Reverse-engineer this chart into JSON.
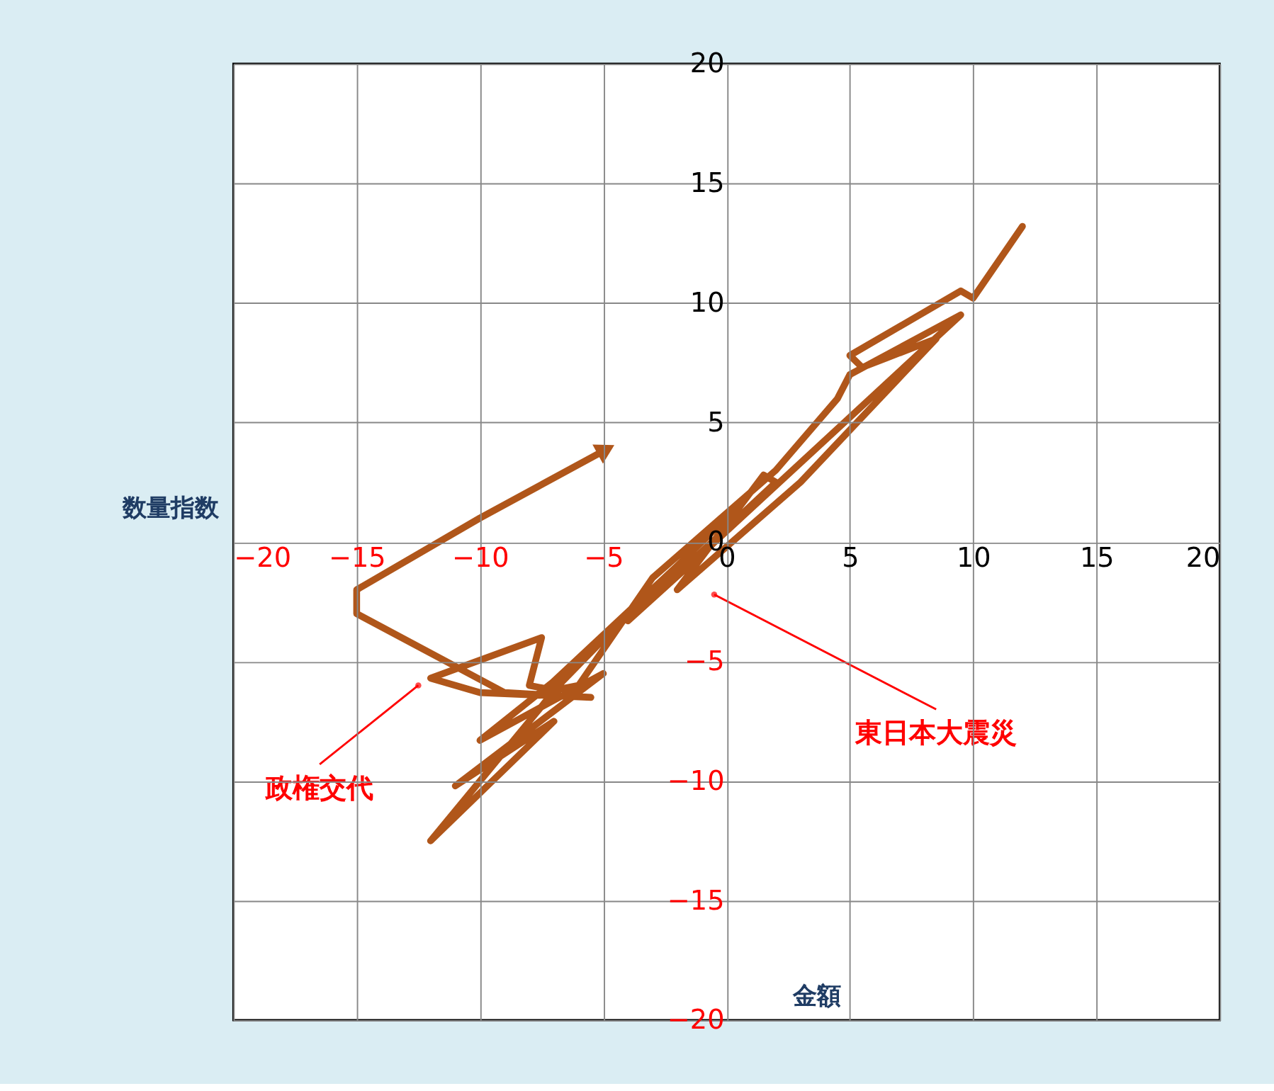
{
  "chart_data": {
    "type": "line",
    "xlabel": "金額",
    "ylabel": "数量指数",
    "x": [
      12,
      10,
      9.5,
      5,
      5.5,
      8.5,
      3,
      -2,
      1.5,
      2,
      -4,
      -1,
      9.5,
      5,
      4.5,
      2,
      -3,
      -6,
      -7.5,
      -2,
      0,
      -6,
      -10,
      -5,
      -11,
      -7,
      -12,
      -6,
      -3.5,
      -7,
      -8,
      -7.5,
      -12,
      -10,
      -5.5,
      -9,
      -15,
      -15,
      -10,
      -5
    ],
    "series": [
      {
        "color": "#b0561a",
        "values": [
          13.2,
          10.2,
          10.5,
          7.8,
          7.3,
          8.5,
          2.5,
          -2,
          2.8,
          2.5,
          -3.3,
          -0.5,
          9.5,
          7,
          6,
          3,
          -1.5,
          -6,
          -6.3,
          -1,
          1,
          -5,
          -8.3,
          -5.5,
          -10.2,
          -7.5,
          -12.5,
          -5,
          -2.5,
          -6.2,
          -6,
          -4,
          -5.7,
          -6.3,
          -6.5,
          -6.3,
          -3,
          -2,
          1,
          3.8
        ]
      }
    ],
    "xlim": [
      -20,
      20
    ],
    "ylim": [
      -20,
      20
    ],
    "xticks": [
      -20,
      -15,
      -10,
      -5,
      0,
      5,
      10,
      15,
      20
    ],
    "yticks": [
      -20,
      -15,
      -10,
      -5,
      0,
      5,
      10,
      15,
      20
    ],
    "grid": true,
    "marker": "none",
    "line_style": "solid",
    "annotations": [
      {
        "text": "政権交代",
        "x": -12.5,
        "y": -6
      },
      {
        "text": "東日本大震災",
        "x": -0.5,
        "y": -2.2
      }
    ]
  }
}
